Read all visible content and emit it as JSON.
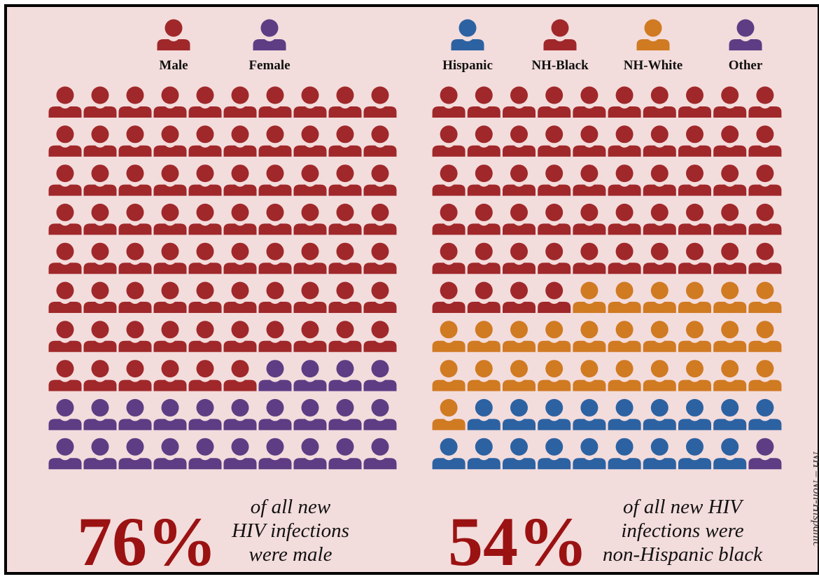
{
  "chart_data": [
    {
      "type": "waffle",
      "categories": [
        "Male",
        "Female"
      ],
      "values": [
        76,
        24
      ],
      "colors": [
        "#a0282a",
        "#5e3d84"
      ],
      "headline": "76%",
      "caption": [
        "of all new",
        "HIV infections",
        "were male"
      ]
    },
    {
      "type": "waffle",
      "categories": [
        "NH-Black",
        "NH-White",
        "Hispanic",
        "Other"
      ],
      "values": [
        54,
        27,
        18,
        1
      ],
      "colors": [
        "#a0282a",
        "#d07a22",
        "#2c62a2",
        "#5e3d84"
      ],
      "headline": "54%",
      "caption": [
        "of all new HIV",
        "infections were",
        "non-Hispanic black"
      ]
    }
  ],
  "note": "NH – Non-Hispanic"
}
